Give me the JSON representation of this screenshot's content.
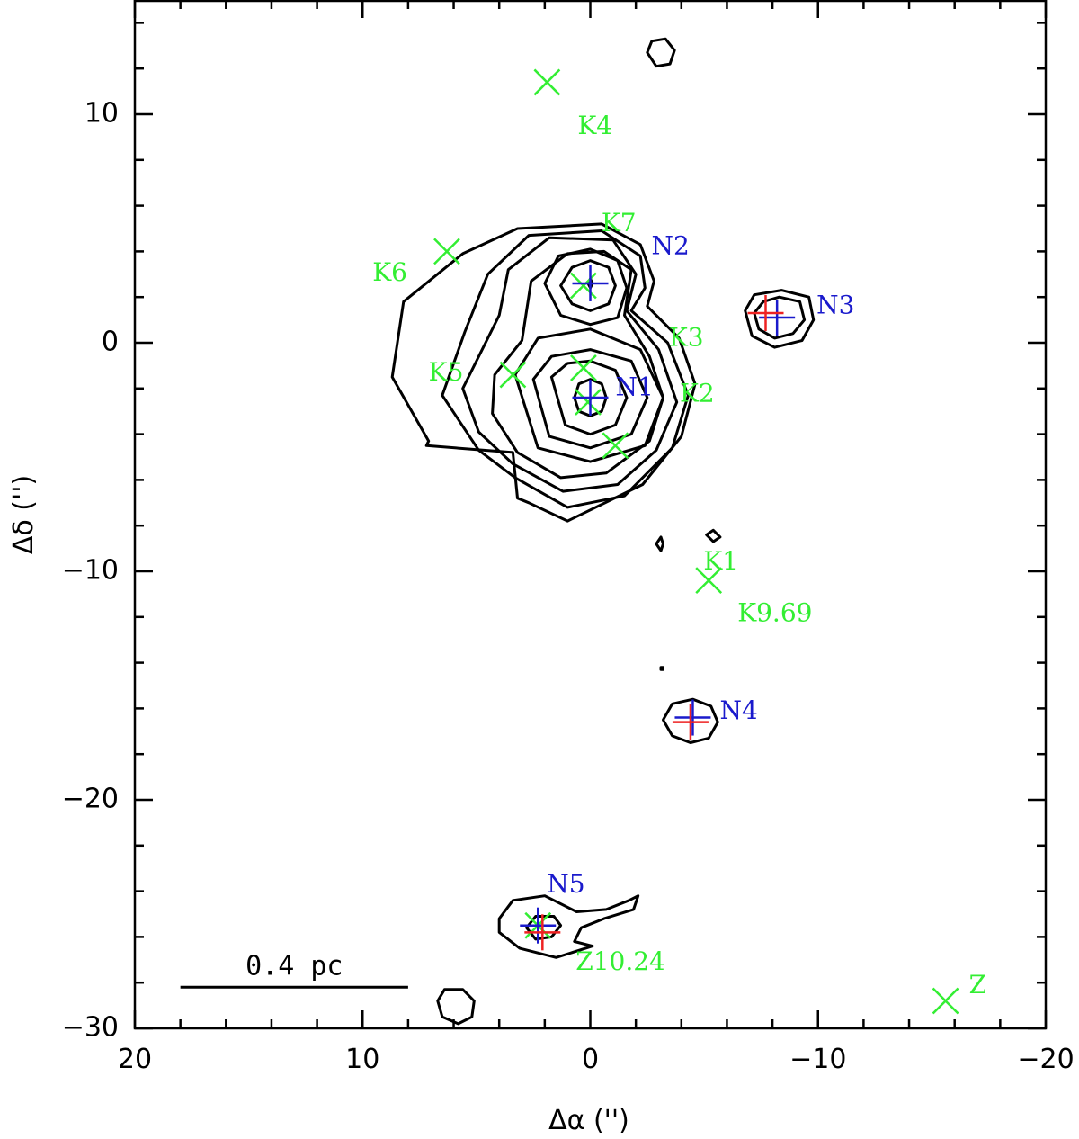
{
  "chart_data": {
    "type": "scatter",
    "title": "",
    "xlabel": "Δα ('')",
    "ylabel": "Δδ ('')",
    "xlim": [
      20,
      -20
    ],
    "ylim": [
      -30,
      15
    ],
    "x_ticks": [
      20,
      10,
      0,
      -10,
      -20
    ],
    "x_tick_labels": [
      "20",
      "10",
      "0",
      "−10",
      "−20"
    ],
    "y_ticks": [
      -30,
      -20,
      -10,
      0,
      10
    ],
    "y_tick_labels": [
      "−30",
      "−20",
      "−10",
      "0",
      "10"
    ],
    "grid": false,
    "scale_bar": {
      "label": "0.4 pc",
      "x_start": 18,
      "x_end": 8,
      "y": -28.2
    },
    "colors": {
      "K": "#33ee33",
      "N": "#1a1acc",
      "red": "#ee2222",
      "contour": "#000000"
    },
    "series": [
      {
        "name": "K",
        "marker": "x",
        "color": "#33ee33",
        "points": [
          {
            "label": "K1",
            "x": -1.1,
            "y": -4.5
          },
          {
            "label": "K2",
            "x": 0.1,
            "y": -2.6
          },
          {
            "label": "K3",
            "x": 0.3,
            "y": -1.1
          },
          {
            "label": "K4",
            "x": 1.9,
            "y": 11.4
          },
          {
            "label": "K5",
            "x": 3.4,
            "y": -1.4
          },
          {
            "label": "K6",
            "x": 6.3,
            "y": 4.0
          },
          {
            "label": "K7",
            "x": 0.3,
            "y": 2.5
          },
          {
            "label": "K9.69",
            "x": -5.2,
            "y": -10.4
          },
          {
            "label": "Z10.24",
            "x": 2.3,
            "y": -25.5
          },
          {
            "label": "Z",
            "x": -15.6,
            "y": -28.8
          }
        ]
      },
      {
        "name": "N",
        "marker": "+",
        "color": "#1a1acc",
        "points": [
          {
            "label": "N1",
            "x": 0.0,
            "y": -2.4
          },
          {
            "label": "N2",
            "x": 0.0,
            "y": 2.6
          },
          {
            "label": "N3",
            "x": -8.2,
            "y": 1.1
          },
          {
            "label": "N4",
            "x": -4.5,
            "y": -16.4
          },
          {
            "label": "N5",
            "x": 2.3,
            "y": -25.5
          }
        ]
      },
      {
        "marker": "+",
        "color": "#ee2222",
        "points": [
          {
            "x": -7.7,
            "y": 1.3
          },
          {
            "x": -4.4,
            "y": -16.6
          },
          {
            "x": 2.1,
            "y": -25.8
          }
        ]
      }
    ],
    "contours": [
      [
        [
          7.1,
          -4.3
        ],
        [
          8.7,
          -1.5
        ],
        [
          8.2,
          1.8
        ],
        [
          5.6,
          3.9
        ],
        [
          3.2,
          5.0
        ],
        [
          -0.5,
          5.2
        ],
        [
          -2.2,
          4.3
        ],
        [
          -2.8,
          2.7
        ],
        [
          -2.5,
          1.6
        ],
        [
          -3.9,
          0.2
        ],
        [
          -4.6,
          -1.8
        ],
        [
          -4.0,
          -4.1
        ],
        [
          -2.3,
          -6.2
        ],
        [
          1.0,
          -7.8
        ],
        [
          2.7,
          -7.0
        ],
        [
          3.2,
          -6.8
        ],
        [
          3.4,
          -4.8
        ],
        [
          7.2,
          -4.5
        ]
      ],
      [
        [
          6.5,
          -2.3
        ],
        [
          5.5,
          0.5
        ],
        [
          4.5,
          3.0
        ],
        [
          2.7,
          4.7
        ],
        [
          -0.5,
          4.9
        ],
        [
          -2.2,
          3.8
        ],
        [
          -2.4,
          2.4
        ],
        [
          -1.8,
          1.4
        ],
        [
          -3.4,
          0.0
        ],
        [
          -4.3,
          -2.3
        ],
        [
          -3.6,
          -4.6
        ],
        [
          -1.5,
          -6.7
        ],
        [
          1.0,
          -7.2
        ],
        [
          3.3,
          -5.9
        ],
        [
          4.9,
          -4.7
        ]
      ],
      [
        [
          5.6,
          -2.0
        ],
        [
          4.0,
          1.2
        ],
        [
          3.6,
          3.2
        ],
        [
          1.8,
          4.6
        ],
        [
          -1.0,
          4.5
        ],
        [
          -2.0,
          3.0
        ],
        [
          -1.6,
          1.4
        ],
        [
          -3.0,
          -0.3
        ],
        [
          -3.8,
          -2.6
        ],
        [
          -2.9,
          -4.7
        ],
        [
          -1.2,
          -6.2
        ],
        [
          1.2,
          -6.5
        ],
        [
          3.4,
          -5.3
        ],
        [
          4.9,
          -3.9
        ]
      ],
      [
        [
          3.0,
          0.1
        ],
        [
          2.6,
          2.7
        ],
        [
          1.0,
          3.9
        ],
        [
          -0.6,
          4.0
        ],
        [
          -1.8,
          3.2
        ],
        [
          -1.5,
          1.2
        ],
        [
          -2.6,
          -0.6
        ],
        [
          -3.2,
          -2.4
        ],
        [
          -2.6,
          -4.3
        ],
        [
          -0.7,
          -5.7
        ],
        [
          1.3,
          -5.9
        ],
        [
          3.2,
          -4.8
        ],
        [
          4.3,
          -3.1
        ],
        [
          4.2,
          -1.4
        ]
      ],
      [
        [
          2.0,
          2.6
        ],
        [
          1.4,
          3.8
        ],
        [
          0.0,
          4.1
        ],
        [
          -1.2,
          3.6
        ],
        [
          -1.6,
          2.4
        ],
        [
          -1.2,
          1.1
        ],
        [
          0.0,
          0.8
        ],
        [
          1.3,
          1.2
        ]
      ],
      [
        [
          1.3,
          2.5
        ],
        [
          0.8,
          3.3
        ],
        [
          0.0,
          3.6
        ],
        [
          -0.8,
          3.3
        ],
        [
          -1.1,
          2.5
        ],
        [
          -0.8,
          1.7
        ],
        [
          0.0,
          1.4
        ],
        [
          0.8,
          1.7
        ]
      ],
      [
        [
          3.3,
          -1.4
        ],
        [
          2.3,
          0.2
        ],
        [
          0.0,
          0.6
        ],
        [
          -2.2,
          -0.3
        ],
        [
          -3.2,
          -2.4
        ],
        [
          -2.4,
          -4.5
        ],
        [
          0.0,
          -5.2
        ],
        [
          2.3,
          -4.6
        ]
      ],
      [
        [
          2.5,
          -1.6
        ],
        [
          1.7,
          -0.6
        ],
        [
          0.0,
          -0.3
        ],
        [
          -1.8,
          -0.8
        ],
        [
          -2.5,
          -2.4
        ],
        [
          -1.8,
          -4.0
        ],
        [
          0.0,
          -4.6
        ],
        [
          1.8,
          -4.1
        ]
      ],
      [
        [
          1.7,
          -1.5
        ],
        [
          1.0,
          -0.9
        ],
        [
          0.0,
          -0.8
        ],
        [
          -1.1,
          -1.2
        ],
        [
          -1.6,
          -2.4
        ],
        [
          -1.1,
          -3.6
        ],
        [
          0.0,
          -4.0
        ],
        [
          1.1,
          -3.6
        ]
      ],
      [
        [
          0.7,
          -2.4
        ],
        [
          0.5,
          -1.8
        ],
        [
          0.0,
          -1.6
        ],
        [
          -0.5,
          -1.8
        ],
        [
          -0.7,
          -2.4
        ],
        [
          -0.5,
          -3.0
        ],
        [
          0.0,
          -3.2
        ],
        [
          0.5,
          -3.0
        ]
      ],
      [
        [
          0.1,
          2.6
        ],
        [
          0.0,
          2.8
        ],
        [
          -0.1,
          2.6
        ],
        [
          0.0,
          2.4
        ]
      ],
      [
        [
          -6.8,
          1.4
        ],
        [
          -7.2,
          2.1
        ],
        [
          -8.4,
          2.3
        ],
        [
          -9.6,
          2.0
        ],
        [
          -9.8,
          1.0
        ],
        [
          -9.3,
          0.1
        ],
        [
          -8.1,
          -0.2
        ],
        [
          -7.1,
          0.3
        ]
      ],
      [
        [
          -7.2,
          1.3
        ],
        [
          -7.6,
          1.8
        ],
        [
          -8.3,
          2.0
        ],
        [
          -9.2,
          1.8
        ],
        [
          -9.4,
          1.0
        ],
        [
          -8.9,
          0.4
        ],
        [
          -8.1,
          0.2
        ],
        [
          -7.4,
          0.6
        ]
      ],
      [
        [
          -3.2,
          -16.5
        ],
        [
          -3.6,
          -15.8
        ],
        [
          -4.5,
          -15.6
        ],
        [
          -5.3,
          -15.9
        ],
        [
          -5.6,
          -16.6
        ],
        [
          -5.2,
          -17.3
        ],
        [
          -4.4,
          -17.5
        ],
        [
          -3.6,
          -17.2
        ]
      ],
      [
        [
          4.0,
          -25.2
        ],
        [
          3.4,
          -24.4
        ],
        [
          2.0,
          -24.2
        ],
        [
          0.6,
          -24.9
        ],
        [
          -0.7,
          -24.8
        ],
        [
          -1.7,
          -24.4
        ],
        [
          -2.1,
          -24.2
        ],
        [
          -1.9,
          -24.8
        ],
        [
          -0.6,
          -25.2
        ],
        [
          0.4,
          -25.6
        ],
        [
          0.7,
          -26.2
        ],
        [
          -0.1,
          -26.4
        ],
        [
          1.5,
          -26.9
        ],
        [
          3.1,
          -26.5
        ],
        [
          4.0,
          -25.8
        ]
      ],
      [
        [
          2.8,
          -25.6
        ],
        [
          2.4,
          -25.1
        ],
        [
          1.6,
          -25.1
        ],
        [
          1.3,
          -25.5
        ],
        [
          1.7,
          -26.0
        ],
        [
          2.4,
          -26.1
        ]
      ],
      [
        [
          6.7,
          -28.8
        ],
        [
          6.4,
          -28.3
        ],
        [
          5.6,
          -28.3
        ],
        [
          5.1,
          -28.8
        ],
        [
          5.2,
          -29.5
        ],
        [
          5.8,
          -29.8
        ],
        [
          6.5,
          -29.5
        ]
      ],
      [
        [
          -2.5,
          12.7
        ],
        [
          -2.7,
          13.2
        ],
        [
          -3.3,
          13.3
        ],
        [
          -3.7,
          12.8
        ],
        [
          -3.5,
          12.2
        ],
        [
          -2.9,
          12.1
        ]
      ],
      [
        [
          -2.9,
          -8.8
        ],
        [
          -3.1,
          -8.5
        ],
        [
          -3.2,
          -8.8
        ],
        [
          -3.1,
          -9.1
        ]
      ],
      [
        [
          -5.1,
          -8.4
        ],
        [
          -5.4,
          -8.2
        ],
        [
          -5.7,
          -8.5
        ],
        [
          -5.4,
          -8.7
        ]
      ],
      [
        [
          -3.1,
          -14.2
        ],
        [
          -3.2,
          -14.2
        ],
        [
          -3.2,
          -14.3
        ],
        [
          -3.1,
          -14.3
        ]
      ]
    ]
  }
}
